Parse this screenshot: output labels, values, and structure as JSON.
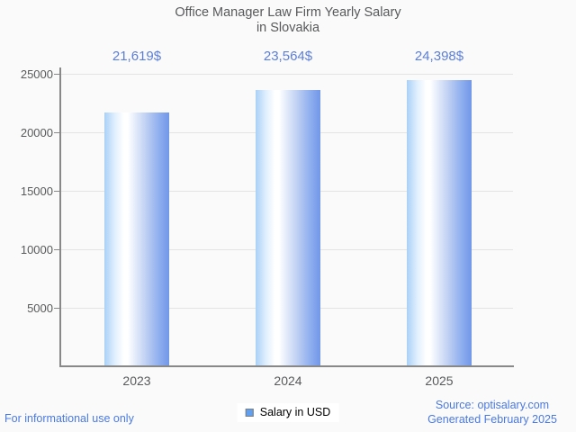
{
  "chart_data": {
    "type": "bar",
    "title": "Office Manager Law Firm Yearly Salary",
    "subtitle": "in Slovakia",
    "categories": [
      "2023",
      "2024",
      "2025"
    ],
    "values": [
      21619,
      23564,
      24398
    ],
    "value_labels": [
      "21,619$",
      "23,564$",
      "24,398$"
    ],
    "series_name": "Salary in USD",
    "xlabel": "",
    "ylabel": "",
    "ylim": [
      0,
      25000
    ],
    "yticks": [
      25000,
      20000,
      15000,
      10000,
      5000
    ],
    "grid": "horizontal",
    "legend_position": "bottom-center"
  },
  "legend": {
    "label": "Salary in USD"
  },
  "footer": {
    "left_note": "For informational use only",
    "source": "Source: optisalary.com",
    "generated": "Generated February 2025"
  },
  "colors": {
    "value_label": "#5b7ed7",
    "footer_text": "#4a79e2",
    "title_text": "#58595b",
    "axis": "#888888",
    "gridline": "#e4e4e4",
    "bar_gradient_left": "#a9d0f7",
    "bar_gradient_mid": "#ffffff",
    "bar_gradient_right": "#7397e9",
    "legend_swatch": "#61a0f1",
    "background": "#fafafa"
  }
}
